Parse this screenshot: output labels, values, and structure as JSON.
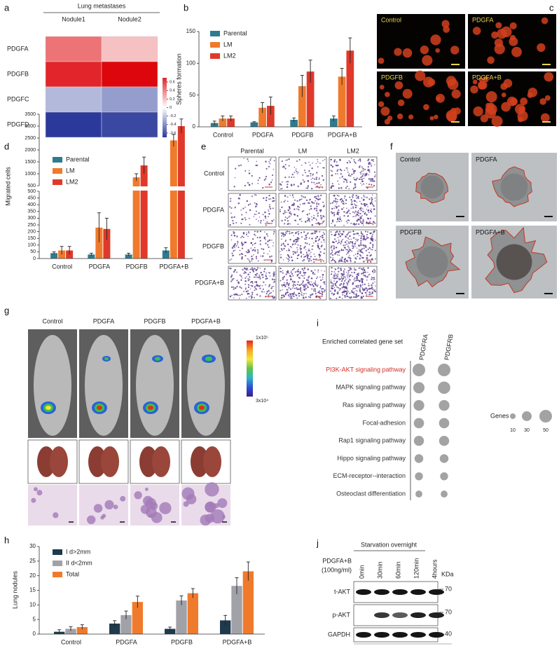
{
  "panel_letters": [
    "a",
    "b",
    "c",
    "d",
    "e",
    "f",
    "g",
    "h",
    "i",
    "j"
  ],
  "chart_data": [
    {
      "type": "heatmap",
      "title": "Lung metastases",
      "columns": [
        "Nodule1",
        "Nodule2"
      ],
      "rows": [
        "PDGFA",
        "PDGFB",
        "PDGFC",
        "PDGFD"
      ],
      "values": [
        [
          0.45,
          0.2
        ],
        [
          0.7,
          0.8
        ],
        [
          -0.25,
          -0.35
        ],
        [
          -0.7,
          -0.65
        ]
      ],
      "zlim": [
        -0.7,
        0.7
      ],
      "zticks": [
        0.6,
        0.4,
        0.2,
        0,
        -0.2,
        -0.4,
        -0.6
      ],
      "colors": [
        "#2b3a9a",
        "#ffffff",
        "#e1252a"
      ]
    },
    {
      "type": "bar",
      "y_label": "Spheres formation",
      "categories": [
        "Control",
        "PDGFA",
        "PDGFB",
        "PDGFA+B"
      ],
      "series": [
        {
          "name": "Parental",
          "color": "#2e7b8e",
          "values": [
            6,
            7,
            11,
            13
          ],
          "errors": [
            3,
            1,
            3,
            4
          ]
        },
        {
          "name": "LM",
          "color": "#f07a2b",
          "values": [
            13,
            30,
            64,
            79
          ],
          "errors": [
            4,
            8,
            17,
            13
          ]
        },
        {
          "name": "LM2",
          "color": "#e0392a",
          "values": [
            13,
            33,
            87,
            120
          ],
          "errors": [
            4,
            14,
            18,
            20
          ]
        }
      ],
      "ylim": [
        0,
        150
      ],
      "yticks": [
        0,
        50,
        100,
        150
      ],
      "legend": "upper left"
    },
    {
      "type": "broken_bar",
      "y_label": "Migrated cells",
      "categories": [
        "Control",
        "PDGFA",
        "PDGFB",
        "PDGFA+B"
      ],
      "series": [
        {
          "name": "Parental",
          "color": "#2e7b8e",
          "values": [
            40,
            30,
            30,
            60
          ],
          "errors": [
            10,
            10,
            10,
            20
          ]
        },
        {
          "name": "LM",
          "color": "#f07a2b",
          "values": [
            60,
            230,
            850,
            2400
          ],
          "errors": [
            30,
            110,
            150,
            250
          ]
        },
        {
          "name": "LM2",
          "color": "#e0392a",
          "values": [
            60,
            220,
            1350,
            3000
          ],
          "errors": [
            30,
            80,
            350,
            300
          ]
        }
      ],
      "ylim": [
        0,
        3500
      ],
      "segments": [
        {
          "ylim": [
            0,
            500
          ],
          "yticks": [
            0,
            50,
            100,
            150,
            200,
            250,
            300,
            350,
            400,
            450,
            500
          ]
        },
        {
          "ylim": [
            500,
            3500
          ],
          "yticks": [
            500,
            1000,
            1500,
            2000,
            2500,
            3000,
            3500
          ]
        }
      ],
      "legend": "upper left"
    },
    {
      "type": "bar",
      "y_label": "Lung nodules",
      "categories": [
        "Control",
        "PDGFA",
        "PDGFB",
        "PDGFA+B"
      ],
      "series": [
        {
          "name": "I d>2mm",
          "color": "#1e3a4c",
          "values": [
            0.8,
            3.6,
            1.8,
            4.7
          ],
          "errors": [
            0.7,
            1,
            0.6,
            1.7
          ]
        },
        {
          "name": "II d<2mm",
          "color": "#a1a1a8",
          "values": [
            1.8,
            6.5,
            11.5,
            16.5
          ],
          "errors": [
            0.7,
            1.4,
            1.6,
            2.8
          ]
        },
        {
          "name": "Total",
          "color": "#f07a2b",
          "values": [
            2.4,
            11,
            14,
            21.5
          ],
          "errors": [
            0.8,
            2,
            1.6,
            3.2
          ]
        }
      ],
      "ylim": [
        0,
        30
      ],
      "yticks": [
        0,
        5,
        10,
        15,
        20,
        25,
        30
      ],
      "legend": "upper left"
    },
    {
      "type": "dot",
      "title": "Enriched correlated gene set",
      "columns": [
        "PDGFRA",
        "PDGFRB"
      ],
      "rows": [
        "PI3K-AKT signaling pathway",
        "MAPK signaling pathway",
        "Ras signaling pathway",
        "Focal-adhesion",
        "Rap1 signaling pathway",
        "Hippo signaling pathway",
        "ECM-receptor--interaction",
        "Osteoclast differentiation"
      ],
      "values": [
        [
          50,
          50
        ],
        [
          40,
          48
        ],
        [
          36,
          36
        ],
        [
          33,
          33
        ],
        [
          32,
          32
        ],
        [
          24,
          24
        ],
        [
          20,
          20
        ],
        [
          15,
          15
        ]
      ],
      "row_colors": [
        "#d42e27",
        "#333333",
        "#333333",
        "#333333",
        "#333333",
        "#333333",
        "#333333",
        "#333333"
      ],
      "color": "#a3a3a3",
      "size_legend": {
        "title": "Genes",
        "values": [
          10,
          30,
          50
        ]
      }
    }
  ],
  "panel_c": {
    "labels": [
      "Control",
      "PDGFA",
      "PDGFB",
      "PDGFA+B"
    ]
  },
  "panel_e": {
    "columns": [
      "Parental",
      "LM",
      "LM2"
    ],
    "rows": [
      "Control",
      "PDGFA",
      "PDGFB",
      "PDGFA+B"
    ]
  },
  "panel_f": {
    "labels": [
      "Control",
      "PDGFA",
      "PDGFB",
      "PDGFA+B"
    ]
  },
  "panel_g": {
    "columns": [
      "Control",
      "PDGFA",
      "PDGFB",
      "PDGFA+B"
    ],
    "colorbar": [
      "1x10⁵",
      "3x10⁴"
    ]
  },
  "panel_j": {
    "header": "Starvation overnight",
    "treatment": "PDGFA+B",
    "dose": "(100ng/ml)",
    "lanes": [
      "0min",
      "30min",
      "60min",
      "120min",
      "4hours"
    ],
    "unit": "KDa",
    "rows": [
      "t-AKT",
      "p-AKT",
      "GAPDH"
    ],
    "markers": [
      "70",
      "70",
      "40"
    ]
  }
}
